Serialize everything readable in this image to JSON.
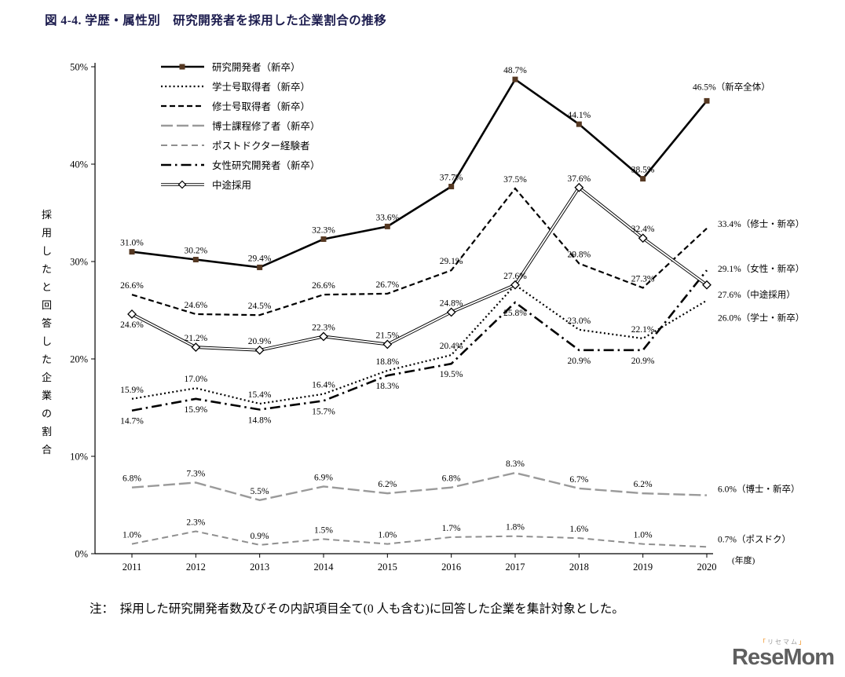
{
  "page": {
    "note": "注：　採用した研究開発者数及びその内訳項目全て(0 人も含む)に回答した企業を集計対象とした。",
    "logo": {
      "text": "ReseMom",
      "subtext": "リセマム"
    }
  },
  "colors": {
    "title_navy": "#1b1b4d",
    "marker_brown": "#553822",
    "gray_line": "#9a9a9a",
    "logo_orange": "#ef8200"
  },
  "chart_data": {
    "type": "line",
    "title": "図 4-4. 学歴・属性別　研究開発者を採用した企業割合の推移",
    "ylabel": "採用したと回答した企業の割合",
    "x_axis_unit": "(年度)",
    "x": [
      2011,
      2012,
      2013,
      2014,
      2015,
      2016,
      2017,
      2018,
      2019,
      2020
    ],
    "ylim": [
      0,
      50
    ],
    "ytick_step": 10,
    "ytick_format": "percent",
    "grid": false,
    "legend_position": "top-left-inside",
    "series": [
      {
        "key": "main",
        "name": "研究開発者（新卒）",
        "values": [
          31.0,
          30.2,
          29.4,
          32.3,
          33.6,
          37.7,
          48.7,
          44.1,
          38.5,
          46.5
        ],
        "end_label": "46.5%（新卒全体）",
        "end_label_placement": "above",
        "label_side": [
          "a",
          "a",
          "a",
          "a",
          "a",
          "a",
          "a",
          "a",
          "a"
        ],
        "style": {
          "dash": "solid",
          "color": "#000000",
          "width": 2.6,
          "marker": "filled-square",
          "marker_color": "#553822"
        }
      },
      {
        "key": "bachelor",
        "name": "学士号取得者（新卒）",
        "values": [
          15.9,
          17.0,
          15.4,
          16.4,
          18.8,
          20.4,
          27.6,
          23.0,
          22.1,
          26.0
        ],
        "end_label": "26.0%（学士・新卒）",
        "end_label_placement": "right",
        "label_side": [
          "a",
          "a",
          "a",
          "a",
          "a",
          "a",
          "n",
          "a",
          "a"
        ],
        "style": {
          "dash": "dotted",
          "color": "#000000",
          "width": 2.2,
          "marker": "none"
        }
      },
      {
        "key": "master",
        "name": "修士号取得者（新卒）",
        "values": [
          26.6,
          24.6,
          24.5,
          26.6,
          26.7,
          29.1,
          37.5,
          29.8,
          27.3,
          33.4
        ],
        "end_label": "33.4%（修士・新卒）",
        "end_label_placement": "right",
        "label_side": [
          "a",
          "a",
          "a",
          "a",
          "a",
          "a",
          "a",
          "a",
          "a"
        ],
        "style": {
          "dash": "dashed",
          "color": "#000000",
          "width": 2.2,
          "marker": "none"
        }
      },
      {
        "key": "doctor",
        "name": "博士課程修了者（新卒）",
        "values": [
          6.8,
          7.3,
          5.5,
          6.9,
          6.2,
          6.8,
          8.3,
          6.7,
          6.2,
          6.0
        ],
        "end_label": "6.0%（博士・新卒）",
        "end_label_placement": "right",
        "label_side": [
          "a",
          "a",
          "a",
          "a",
          "a",
          "a",
          "a",
          "a",
          "a"
        ],
        "style": {
          "dash": "long-dash",
          "color": "#9a9a9a",
          "width": 2.4,
          "marker": "none"
        }
      },
      {
        "key": "postdoc",
        "name": "ポストドクター経験者",
        "values": [
          1.0,
          2.3,
          0.9,
          1.5,
          1.0,
          1.7,
          1.8,
          1.6,
          1.0,
          0.7
        ],
        "end_label": "0.7%（ポスドク）",
        "end_label_placement": "right",
        "label_side": [
          "a",
          "a",
          "a",
          "a",
          "a",
          "a",
          "a",
          "a",
          "a"
        ],
        "style": {
          "dash": "dash",
          "color": "#8f8f8f",
          "width": 2,
          "marker": "none"
        }
      },
      {
        "key": "female",
        "name": "女性研究開発者（新卒）",
        "values": [
          14.7,
          15.9,
          14.8,
          15.7,
          18.3,
          19.5,
          25.8,
          20.9,
          20.9,
          29.1
        ],
        "end_label": "29.1%（女性・新卒）",
        "end_label_placement": "right",
        "label_side": [
          "b",
          "b",
          "b",
          "b",
          "b",
          "b",
          "b",
          "b",
          "b"
        ],
        "style": {
          "dash": "dash-dot",
          "color": "#000000",
          "width": 2.6,
          "marker": "none"
        }
      },
      {
        "key": "midcareer",
        "name": "中途採用",
        "values": [
          24.6,
          21.2,
          20.9,
          22.3,
          21.5,
          24.8,
          27.6,
          37.6,
          32.4,
          27.6
        ],
        "end_label": "27.6%（中途採用）",
        "end_label_placement": "right",
        "label_side": [
          "b",
          "a",
          "a",
          "a",
          "a",
          "a",
          "a",
          "a",
          "a"
        ],
        "style": {
          "dash": "double-solid",
          "color": "#000000",
          "width": 1.2,
          "marker": "open-diamond"
        }
      }
    ]
  }
}
